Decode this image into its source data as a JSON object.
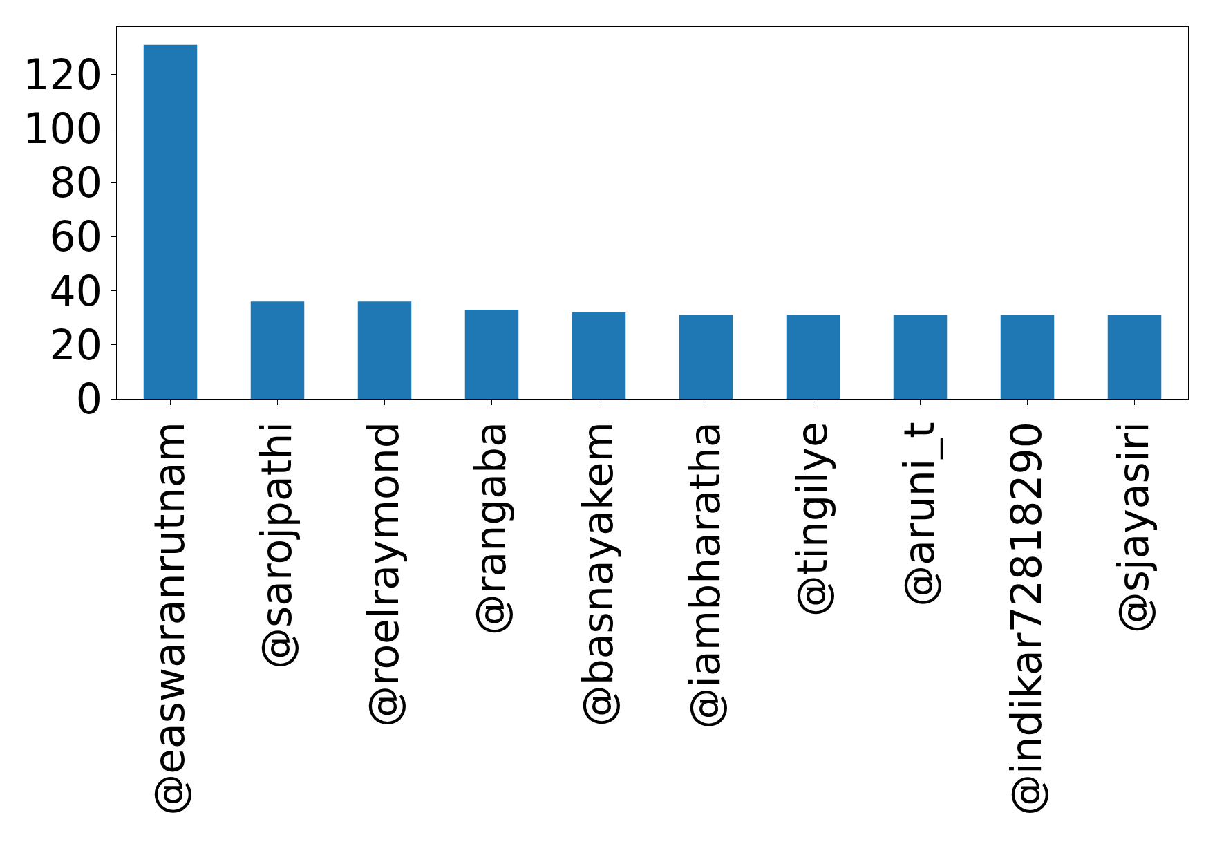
{
  "chart_data": {
    "type": "bar",
    "categories": [
      "@easwaranrutnam",
      "@sarojpathi",
      "@roelraymond",
      "@rangaba",
      "@basnayakem",
      "@iambharatha",
      "@tingilye",
      "@aruni_t",
      "@indikar72818290",
      "@sjayasiri"
    ],
    "values": [
      131,
      36,
      36,
      33,
      32,
      31,
      31,
      31,
      31,
      31
    ],
    "color": "#1f77b4",
    "ylim": [
      0,
      137.6
    ],
    "yticks": [
      0,
      20,
      40,
      60,
      80,
      100,
      120
    ],
    "grid": false
  }
}
